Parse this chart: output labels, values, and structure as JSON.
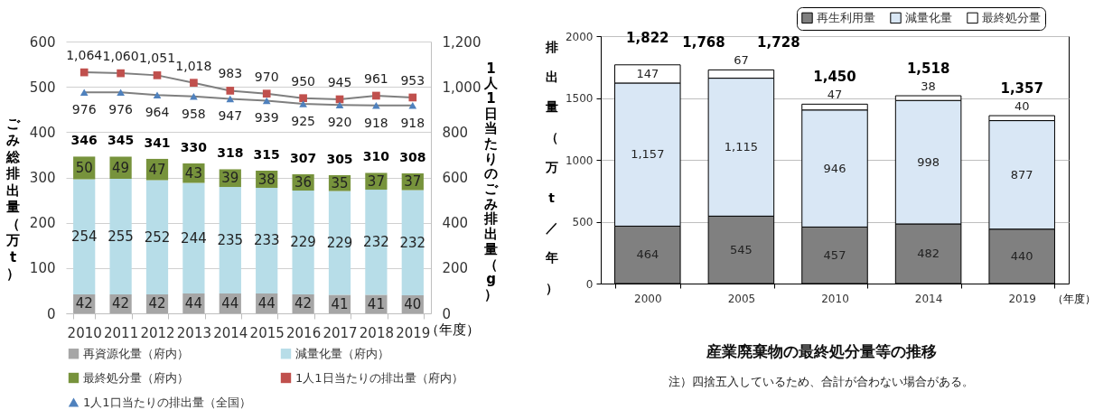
{
  "chart_data": [
    {
      "type": "bar",
      "categories": [
        "2010",
        "2011",
        "2012",
        "2013",
        "2014",
        "2015",
        "2016",
        "2017",
        "2018",
        "2019"
      ],
      "stacked": true,
      "series": [
        {
          "name": "再資源化量（府内）",
          "color": "#a6a6a6",
          "values": [
            42,
            42,
            42,
            44,
            44,
            44,
            42,
            41,
            41,
            40
          ],
          "value_labels": [
            "42",
            "42",
            "42",
            "44",
            "44",
            "44",
            "42",
            "41",
            "41",
            "40"
          ]
        },
        {
          "name": "減量化量（府内）",
          "color": "#b7dde8",
          "values": [
            254,
            255,
            252,
            244,
            235,
            233,
            229,
            229,
            232,
            232
          ],
          "value_labels": [
            "254",
            "255",
            "252",
            "244",
            "235",
            "233",
            "229",
            "229",
            "232",
            "232"
          ]
        },
        {
          "name": "最終処分量（府内）",
          "color": "#77933c",
          "values": [
            50,
            49,
            47,
            43,
            39,
            38,
            36,
            35,
            37,
            37
          ],
          "value_labels": [
            "50",
            "49",
            "47",
            "43",
            "39",
            "38",
            "36",
            "35",
            "37",
            "37"
          ]
        },
        {
          "name": "1人1日当たりの排出量（府内）",
          "type": "line",
          "axis": "y2",
          "marker": "square",
          "color": "#c0504d",
          "values": [
            1064,
            1060,
            1051,
            1018,
            983,
            970,
            950,
            945,
            961,
            953
          ],
          "value_labels": [
            "1,064",
            "1,060",
            "1,051",
            "1,018",
            "983",
            "970",
            "950",
            "945",
            "961",
            "953"
          ]
        },
        {
          "name": "1人1口当たりの排出量（全国）",
          "type": "line",
          "axis": "y2",
          "marker": "triangle",
          "color": "#4f81bd",
          "values": [
            976,
            976,
            964,
            958,
            947,
            939,
            925,
            920,
            918,
            918
          ],
          "value_labels": [
            "976",
            "976",
            "964",
            "958",
            "947",
            "939",
            "925",
            "920",
            "918",
            "918"
          ]
        }
      ],
      "totals": [
        "346",
        "345",
        "341",
        "330",
        "318",
        "315",
        "307",
        "305",
        "310",
        "308"
      ],
      "xlabel": "（年度）",
      "ylabel": "ごみ総排出量（万t）",
      "y2label": "1人1日当たりのごみ排出量（g）",
      "ylim": [
        0,
        600
      ],
      "yticks": [
        0,
        100,
        200,
        300,
        400,
        500,
        600
      ],
      "y2lim": [
        0,
        1200
      ],
      "y2ticks": [
        0,
        200,
        400,
        600,
        800,
        {
          "value": 1000,
          "label": "1,000"
        },
        {
          "value": 1200,
          "label": "1,200"
        }
      ],
      "grid": "y",
      "legend": "bottom"
    },
    {
      "type": "bar",
      "title": "産業廃棄物の最終処分量等の推移",
      "categories": [
        "2000",
        "2005",
        "2010",
        "2014",
        "2019"
      ],
      "stacked": true,
      "series": [
        {
          "name": "再生利用量",
          "color": "#808080",
          "values": [
            464,
            545,
            457,
            482,
            440
          ],
          "value_labels": [
            "464",
            "545",
            "457",
            "482",
            "440"
          ]
        },
        {
          "name": "減量化量",
          "color": "#d9e7f5",
          "values": [
            1157,
            1115,
            946,
            998,
            877
          ],
          "value_labels": [
            "1,157",
            "1,115",
            "946",
            "998",
            "877"
          ]
        },
        {
          "name": "最終処分量",
          "color": "#ffffff",
          "values": [
            147,
            67,
            47,
            38,
            40
          ],
          "value_labels": [
            "147",
            "67",
            "47",
            "38",
            "40"
          ]
        }
      ],
      "xlabel": "（年度）",
      "ylabel": "排出量（万t／年）",
      "ylim": [
        0,
        2000
      ],
      "yticks": [
        0,
        500,
        1000,
        1500,
        2000
      ],
      "grid": "y",
      "legend": "top right",
      "annotations": [
        {
          "text": "1,822",
          "x": "2000",
          "y": 1768
        },
        {
          "text": "1,768",
          "x": "2005",
          "y": 1727
        },
        {
          "text": "1,728",
          "x": "2005",
          "y": 1727
        },
        {
          "text": "1,450",
          "x": "2010",
          "y": 1450
        },
        {
          "text": "1,518",
          "x": "2014",
          "y": 1518
        },
        {
          "text": "1,357",
          "x": "2019",
          "y": 1357
        },
        "注）四捨五入しているため、合計が合わない場合がある。"
      ]
    }
  ]
}
